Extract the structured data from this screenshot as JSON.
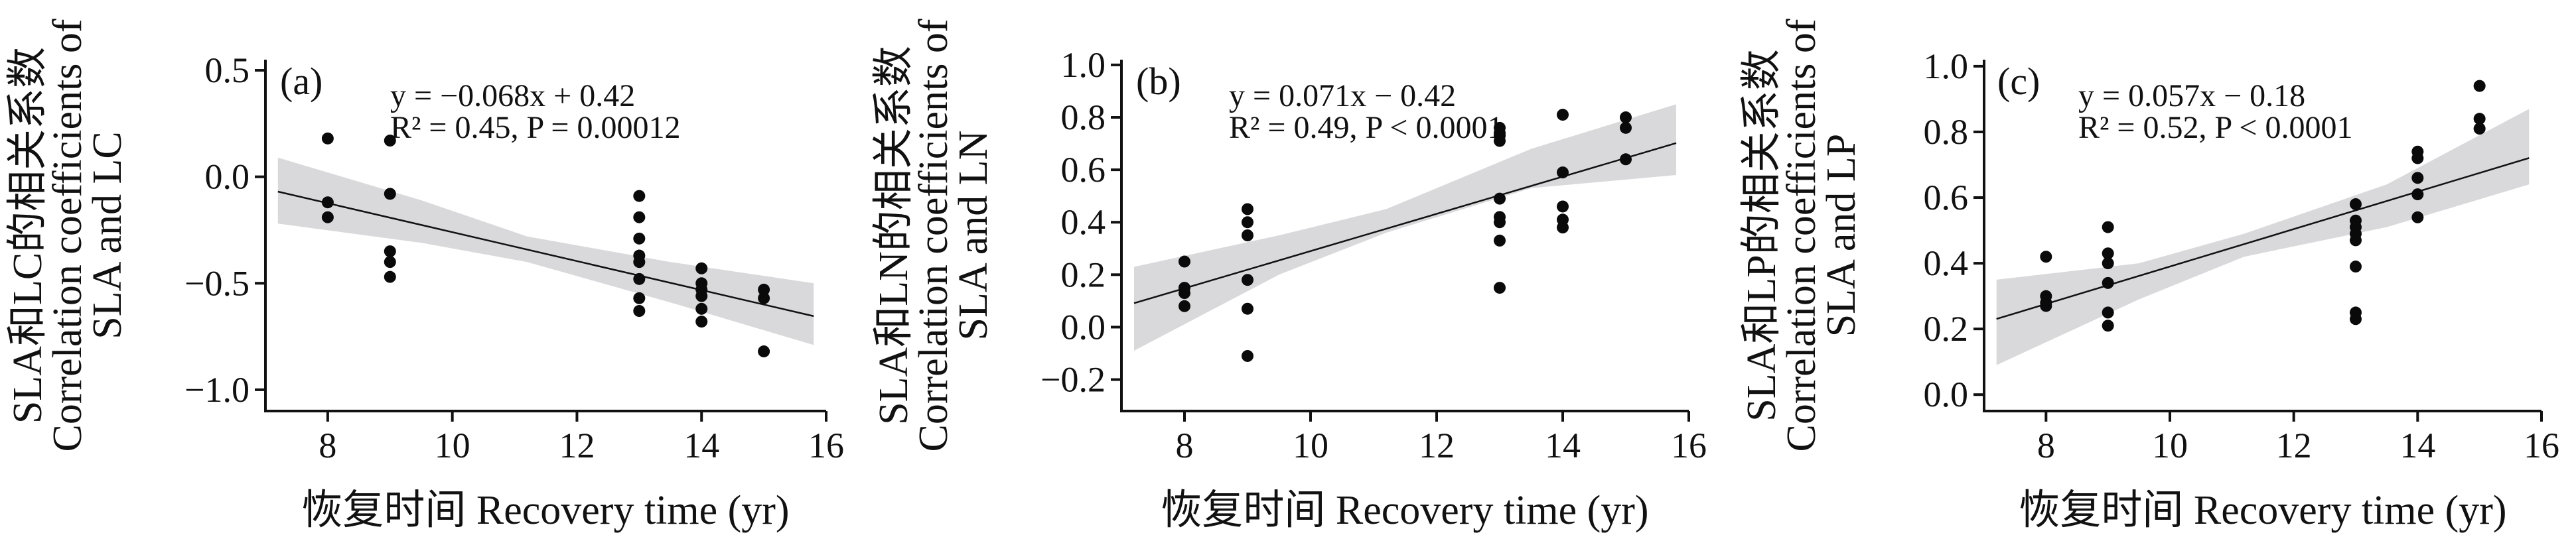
{
  "chart_data": [
    {
      "type": "scatter",
      "panel_label": "(a)",
      "equation": "y = −0.068x + 0.42",
      "stats": "R² = 0.45, P = 0.00012",
      "xlabel": "恢复时间 Recovery time (yr)",
      "ylabel_cn": "SLA和LC的相关系数",
      "ylabel_en1": "Correlation coefficients of",
      "ylabel_en2": "SLA and LC",
      "xlim": [
        7,
        16
      ],
      "ylim": [
        -1.1,
        0.55
      ],
      "xticks": [
        8,
        10,
        12,
        14,
        16
      ],
      "yticks": [
        0.5,
        0.0,
        -0.5,
        -1.0
      ],
      "ytick_labels": [
        "0.5",
        "0.0",
        "−0.5",
        "−1.0"
      ],
      "points": [
        [
          8,
          0.18
        ],
        [
          8,
          -0.12
        ],
        [
          8,
          -0.19
        ],
        [
          9,
          0.17
        ],
        [
          9,
          -0.08
        ],
        [
          9,
          -0.35
        ],
        [
          9,
          -0.4
        ],
        [
          9,
          -0.47
        ],
        [
          13,
          -0.09
        ],
        [
          13,
          -0.19
        ],
        [
          13,
          -0.29
        ],
        [
          13,
          -0.37
        ],
        [
          13,
          -0.4
        ],
        [
          13,
          -0.48
        ],
        [
          13,
          -0.57
        ],
        [
          13,
          -0.63
        ],
        [
          14,
          -0.43
        ],
        [
          14,
          -0.5
        ],
        [
          14,
          -0.53
        ],
        [
          14,
          -0.56
        ],
        [
          14,
          -0.62
        ],
        [
          14,
          -0.68
        ],
        [
          15,
          -0.53
        ],
        [
          15,
          -0.57
        ],
        [
          15,
          -0.82
        ]
      ],
      "regression": {
        "slope": -0.068,
        "intercept": 0.42
      },
      "band": {
        "x": [
          7.2,
          9.5,
          11.2,
          13.5,
          15.8
        ],
        "lower": [
          -0.22,
          -0.31,
          -0.4,
          -0.59,
          -0.79
        ],
        "upper": [
          0.09,
          -0.11,
          -0.28,
          -0.4,
          -0.5
        ]
      }
    },
    {
      "type": "scatter",
      "panel_label": "(b)",
      "equation": "y = 0.071x − 0.42",
      "stats": "R² = 0.49, P < 0.0001",
      "xlabel": "恢复时间 Recovery time (yr)",
      "ylabel_cn": "SLA和LN的相关系数",
      "ylabel_en1": "Correlation coefficients of",
      "ylabel_en2": "SLA and LN",
      "xlim": [
        7,
        16
      ],
      "ylim": [
        -0.32,
        1.02
      ],
      "xticks": [
        8,
        10,
        12,
        14,
        16
      ],
      "yticks": [
        1.0,
        0.8,
        0.6,
        0.4,
        0.2,
        0.0,
        -0.2
      ],
      "ytick_labels": [
        "1.0",
        "0.8",
        "0.6",
        "0.4",
        "0.2",
        "0.0",
        "−0.2"
      ],
      "points": [
        [
          8,
          0.25
        ],
        [
          8,
          0.15
        ],
        [
          8,
          0.13
        ],
        [
          8,
          0.08
        ],
        [
          9,
          0.45
        ],
        [
          9,
          0.4
        ],
        [
          9,
          0.35
        ],
        [
          9,
          0.18
        ],
        [
          9,
          0.07
        ],
        [
          9,
          -0.11
        ],
        [
          13,
          0.76
        ],
        [
          13,
          0.74
        ],
        [
          13,
          0.73
        ],
        [
          13,
          0.71
        ],
        [
          13,
          0.49
        ],
        [
          13,
          0.42
        ],
        [
          13,
          0.4
        ],
        [
          13,
          0.33
        ],
        [
          13,
          0.15
        ],
        [
          14,
          0.81
        ],
        [
          14,
          0.59
        ],
        [
          14,
          0.46
        ],
        [
          14,
          0.41
        ],
        [
          14,
          0.38
        ],
        [
          15,
          0.8
        ],
        [
          15,
          0.76
        ],
        [
          15,
          0.64
        ]
      ],
      "regression": {
        "slope": 0.071,
        "intercept": -0.42
      },
      "band": {
        "x": [
          7.2,
          9.5,
          11.2,
          13.5,
          15.8
        ],
        "lower": [
          -0.09,
          0.2,
          0.36,
          0.53,
          0.58
        ],
        "upper": [
          0.23,
          0.35,
          0.45,
          0.68,
          0.85
        ]
      }
    },
    {
      "type": "scatter",
      "panel_label": "(c)",
      "equation": "y = 0.057x − 0.18",
      "stats": "R² = 0.52, P < 0.0001",
      "xlabel": "恢复时间 Recovery time (yr)",
      "ylabel_cn": "SLA和LP的相关系数",
      "ylabel_en1": "Correlation coefficients of",
      "ylabel_en2": "SLA and LP",
      "xlim": [
        7,
        16
      ],
      "ylim": [
        -0.05,
        1.02
      ],
      "xticks": [
        8,
        10,
        12,
        14,
        16
      ],
      "yticks": [
        1.0,
        0.8,
        0.6,
        0.4,
        0.2,
        0.0
      ],
      "ytick_labels": [
        "1.0",
        "0.8",
        "0.6",
        "0.4",
        "0.2",
        "0.0"
      ],
      "points": [
        [
          8,
          0.42
        ],
        [
          8,
          0.3
        ],
        [
          8,
          0.28
        ],
        [
          8,
          0.27
        ],
        [
          9,
          0.51
        ],
        [
          9,
          0.43
        ],
        [
          9,
          0.4
        ],
        [
          9,
          0.34
        ],
        [
          9,
          0.25
        ],
        [
          9,
          0.21
        ],
        [
          13,
          0.58
        ],
        [
          13,
          0.53
        ],
        [
          13,
          0.51
        ],
        [
          13,
          0.49
        ],
        [
          13,
          0.47
        ],
        [
          13,
          0.39
        ],
        [
          13,
          0.25
        ],
        [
          13,
          0.23
        ],
        [
          14,
          0.74
        ],
        [
          14,
          0.72
        ],
        [
          14,
          0.66
        ],
        [
          14,
          0.61
        ],
        [
          14,
          0.54
        ],
        [
          15,
          0.94
        ],
        [
          15,
          0.84
        ],
        [
          15,
          0.81
        ]
      ],
      "regression": {
        "slope": 0.057,
        "intercept": -0.18
      },
      "band": {
        "x": [
          7.2,
          9.5,
          11.2,
          13.5,
          15.8
        ],
        "lower": [
          0.09,
          0.29,
          0.42,
          0.51,
          0.64
        ],
        "upper": [
          0.35,
          0.4,
          0.49,
          0.64,
          0.87
        ]
      }
    }
  ]
}
